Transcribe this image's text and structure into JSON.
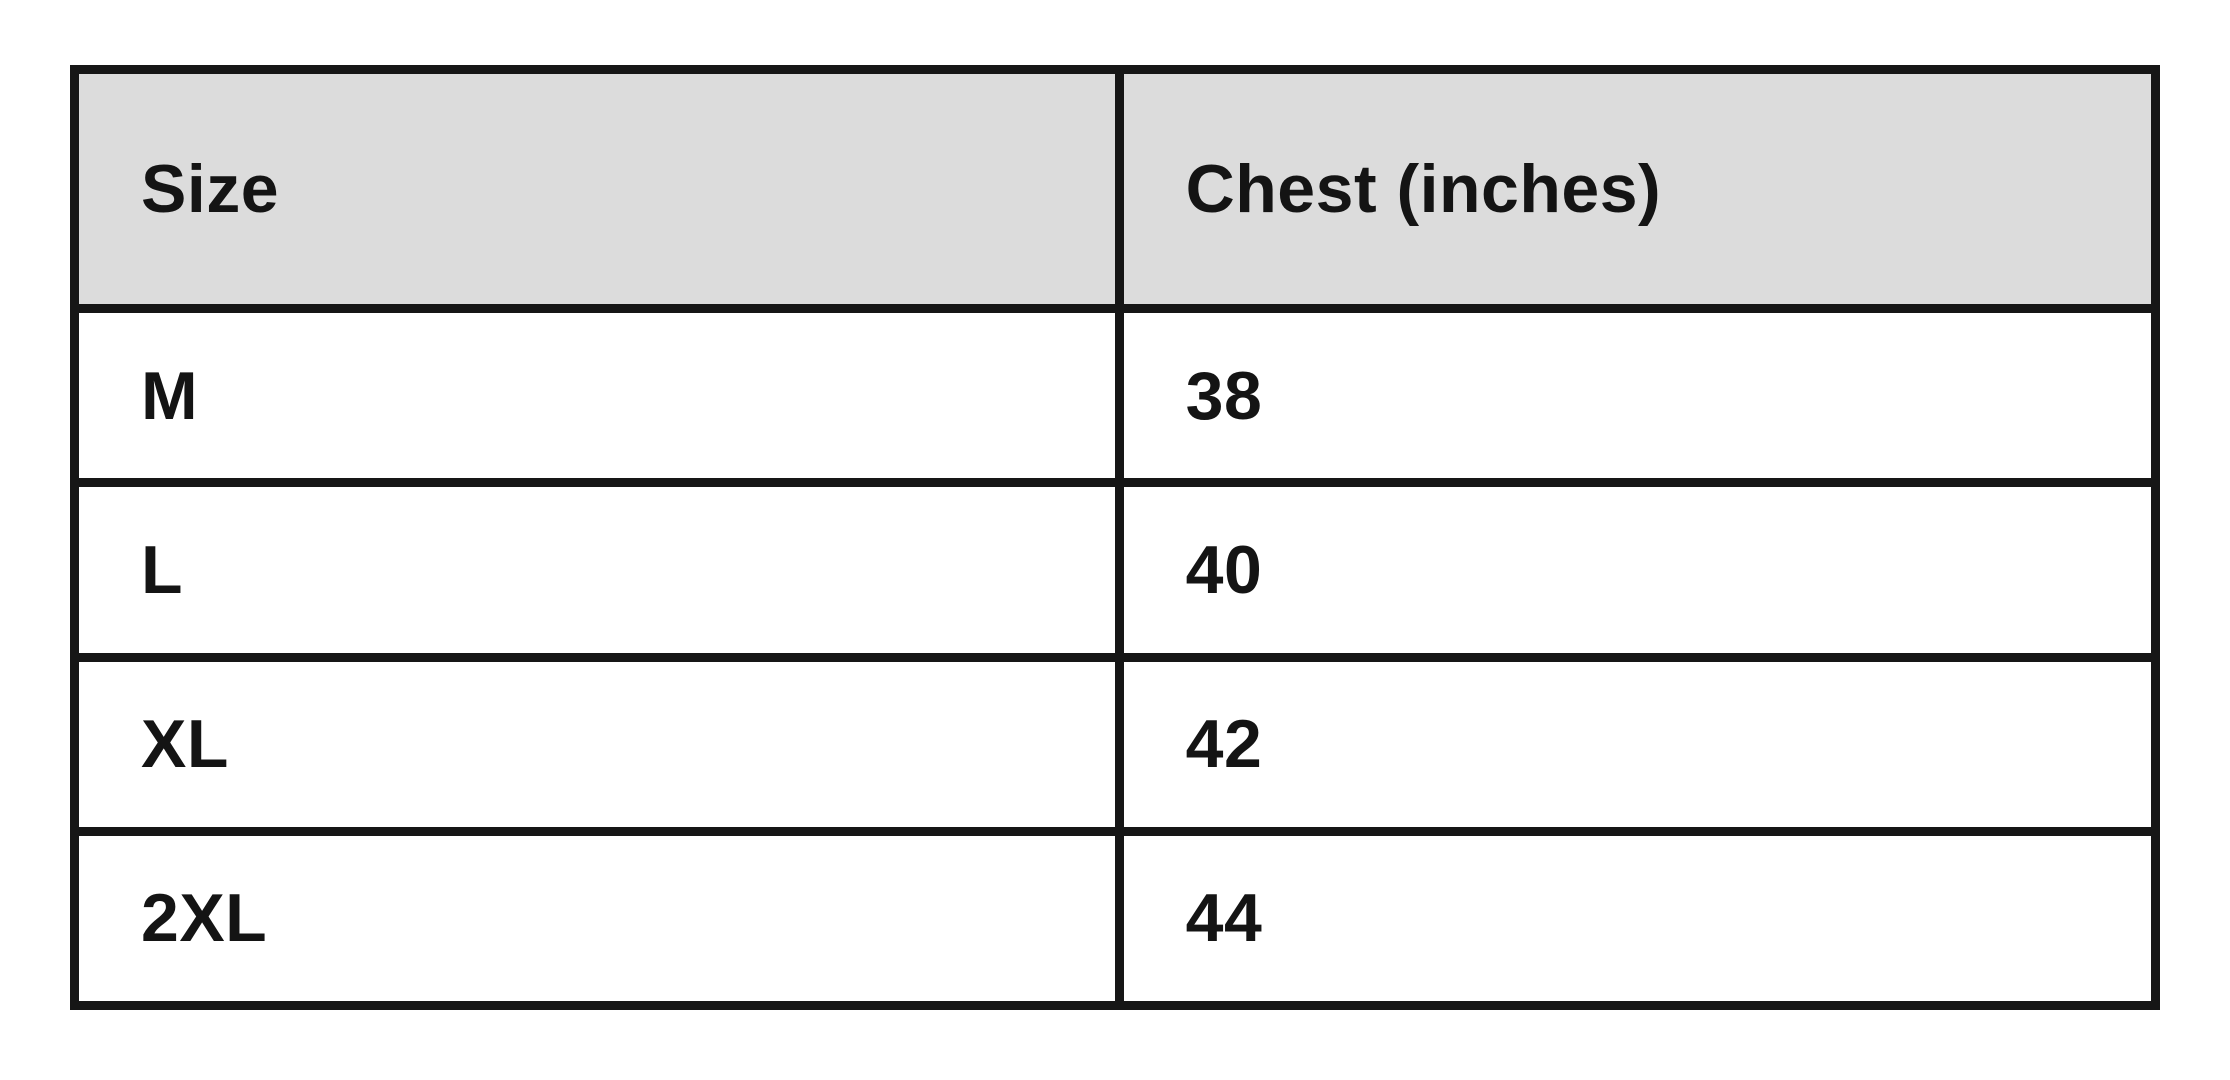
{
  "table": {
    "title": "size-chart",
    "columns": {
      "size_header": "Size",
      "chest_header": "Chest (inches)"
    },
    "rows": [
      {
        "size": "M",
        "chest": "38"
      },
      {
        "size": "L",
        "chest": "40"
      },
      {
        "size": "XL",
        "chest": "42"
      },
      {
        "size": "2XL",
        "chest": "44"
      }
    ],
    "colors": {
      "header_background": "#dcdcdc",
      "row_background": "#ffffff",
      "border": "#161616",
      "text": "#141414",
      "page_background": "#ffffff"
    }
  }
}
